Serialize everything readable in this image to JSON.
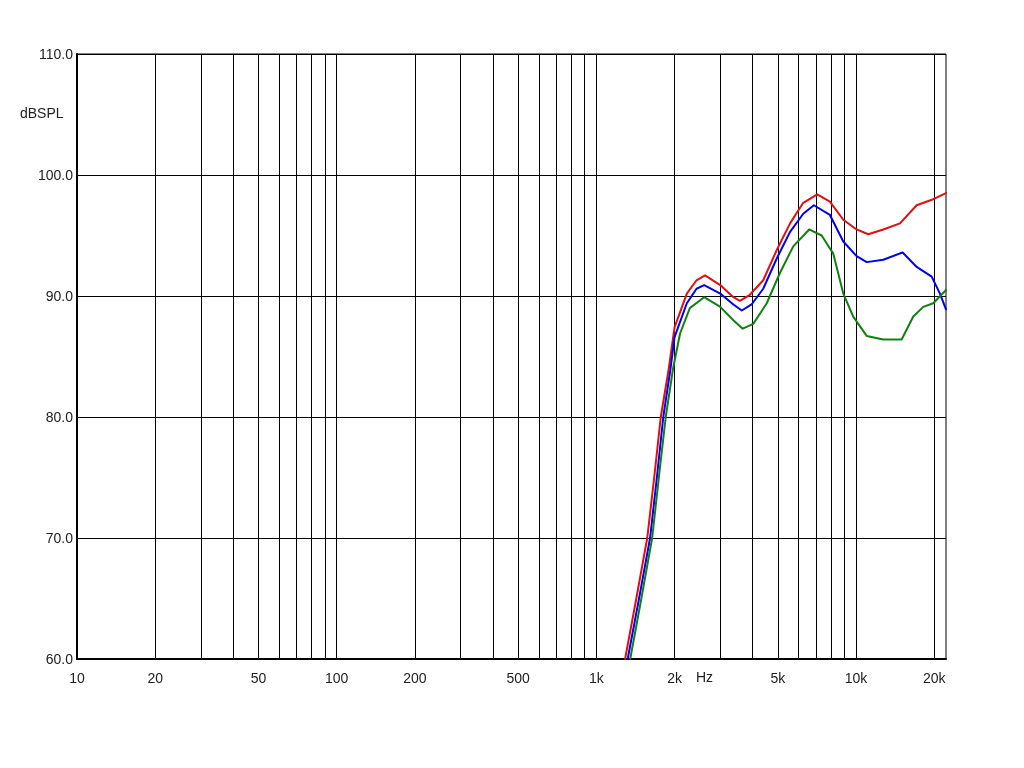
{
  "chart_data": {
    "type": "line",
    "xlabel": "Hz",
    "ylabel": "dBSPL",
    "log": "x",
    "grid": true,
    "xlim": [
      10,
      22200
    ],
    "ylim": [
      60,
      110
    ],
    "xticks": [
      10,
      20,
      {
        "value": 30,
        "label": null
      },
      {
        "value": 40,
        "label": null
      },
      50,
      {
        "value": 60,
        "label": null
      },
      {
        "value": 70,
        "label": null
      },
      {
        "value": 80,
        "label": null
      },
      {
        "value": 90,
        "label": null
      },
      100,
      200,
      {
        "value": 300,
        "label": null
      },
      {
        "value": 400,
        "label": null
      },
      500,
      {
        "value": 600,
        "label": null
      },
      {
        "value": 700,
        "label": null
      },
      {
        "value": 800,
        "label": null
      },
      {
        "value": 900,
        "label": null
      },
      {
        "value": 1000,
        "label": "1k"
      },
      {
        "value": 2000,
        "label": "2k"
      },
      {
        "value": 3000,
        "label": null
      },
      {
        "value": 4000,
        "label": null
      },
      {
        "value": 5000,
        "label": "5k"
      },
      {
        "value": 6000,
        "label": null
      },
      {
        "value": 7000,
        "label": null
      },
      {
        "value": 8000,
        "label": null
      },
      {
        "value": 9000,
        "label": null
      },
      {
        "value": 10000,
        "label": "10k"
      },
      {
        "value": 20000,
        "label": "20k"
      }
    ],
    "yticks": [
      {
        "value": 60,
        "label": "60.0"
      },
      {
        "value": 70,
        "label": "70.0"
      },
      {
        "value": 80,
        "label": "80.0"
      },
      {
        "value": 90,
        "label": "90.0"
      },
      {
        "value": 100,
        "label": "100.0"
      },
      {
        "value": 110,
        "label": "110.0"
      }
    ],
    "series": [
      {
        "color": "#e01010",
        "x": [
          1290,
          1425,
          1570,
          1670,
          1770,
          1900,
          2000,
          2230,
          2430,
          2620,
          3000,
          3370,
          3570,
          3900,
          4390,
          4950,
          5570,
          6260,
          7090,
          7930,
          8930,
          10050,
          11140,
          12730,
          14760,
          17120,
          19830,
          22200
        ],
        "values": [
          60,
          65,
          70,
          75,
          80,
          84,
          87.4,
          90.2,
          91.3,
          91.7,
          90.9,
          89.9,
          89.6,
          90.1,
          91.3,
          93.8,
          96.0,
          97.7,
          98.4,
          97.8,
          96.3,
          95.5,
          95.1,
          95.5,
          96.0,
          97.5,
          98.0,
          98.5
        ]
      },
      {
        "color": "#0000f0",
        "x": [
          1320,
          1460,
          1610,
          1710,
          1810,
          1930,
          2000,
          2230,
          2430,
          2600,
          3000,
          3370,
          3630,
          3960,
          4390,
          4950,
          5570,
          6260,
          6880,
          7930,
          8930,
          10050,
          10990,
          12730,
          15110,
          17120,
          19550,
          21040,
          22200
        ],
        "values": [
          60,
          65,
          70,
          75,
          80,
          84,
          86.6,
          89.4,
          90.6,
          90.9,
          90.2,
          89.3,
          88.8,
          89.3,
          90.6,
          93.1,
          95.3,
          96.8,
          97.5,
          96.7,
          94.5,
          93.3,
          92.8,
          93.0,
          93.6,
          92.4,
          91.6,
          90.2,
          88.9
        ]
      },
      {
        "color": "#108010",
        "x": [
          1350,
          1490,
          1640,
          1740,
          1850,
          1970,
          2100,
          2290,
          2600,
          3000,
          3370,
          3660,
          4020,
          4530,
          5090,
          5730,
          6600,
          7370,
          8170,
          8930,
          9750,
          10990,
          12730,
          14980,
          16610,
          18150,
          19830,
          22200
        ],
        "values": [
          60,
          65,
          70,
          75,
          80,
          83.9,
          86.9,
          89.0,
          89.9,
          89.1,
          88.0,
          87.3,
          87.7,
          89.4,
          91.9,
          94.1,
          95.5,
          95.0,
          93.5,
          90.2,
          88.3,
          86.7,
          86.4,
          86.4,
          88.3,
          89.1,
          89.4,
          90.5
        ]
      }
    ]
  }
}
